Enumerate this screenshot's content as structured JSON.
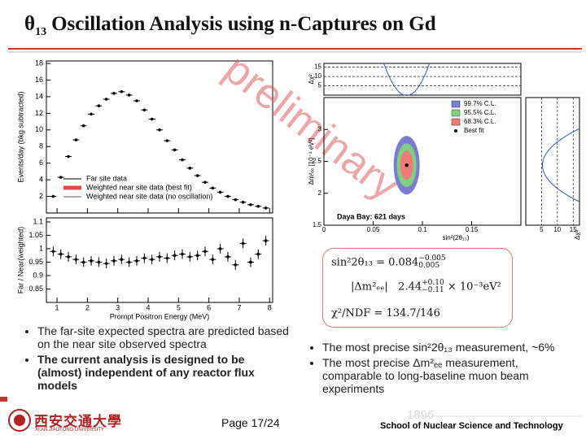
{
  "title": {
    "symbol": "θ",
    "subscript": "13",
    "text": "Oscillation Analysis using n-Captures on Gd"
  },
  "spectrum_plot": {
    "type": "scatter",
    "y_label": "Events/day (bkg subtracted)",
    "ratio_label": "Far / Near(weighted)",
    "x_label": "Prompt Positron Energy (MeV)",
    "xlim": [
      0.65,
      8.1
    ],
    "xticks": [
      1,
      2,
      3,
      4,
      5,
      6,
      7,
      8
    ],
    "ylim": [
      0,
      18.3
    ],
    "yticks": [
      2,
      4,
      6,
      8,
      10,
      12,
      14,
      16,
      18
    ],
    "ratio_ylim": [
      0.8,
      1.115
    ],
    "ratio_ticks": [
      0.85,
      0.9,
      0.95,
      1,
      1.05,
      1.1
    ],
    "legend": [
      "Far site data",
      "Weighted near site data (best fit)",
      "Weighted near site data (no oscillation)"
    ],
    "energies": [
      0.875,
      1.125,
      1.375,
      1.625,
      1.875,
      2.125,
      2.375,
      2.625,
      2.875,
      3.125,
      3.375,
      3.625,
      3.875,
      4.125,
      4.375,
      4.625,
      4.875,
      5.125,
      5.375,
      5.625,
      5.875,
      6.125,
      6.375,
      6.625,
      6.875,
      7.125,
      7.375,
      7.625,
      7.875
    ],
    "far_site": [
      2.0,
      4.3,
      6.8,
      8.8,
      10.5,
      11.9,
      12.9,
      13.7,
      14.4,
      14.6,
      14.2,
      13.5,
      12.4,
      11.3,
      10.0,
      8.7,
      7.6,
      6.4,
      5.4,
      4.5,
      3.7,
      3.0,
      2.5,
      2.0,
      1.6,
      1.3,
      1.0,
      0.8,
      0.6
    ],
    "ratio": [
      0.99,
      0.98,
      0.97,
      0.96,
      0.95,
      0.955,
      0.95,
      0.945,
      0.955,
      0.96,
      0.95,
      0.955,
      0.965,
      0.96,
      0.97,
      0.965,
      0.975,
      0.98,
      0.97,
      0.975,
      0.99,
      0.96,
      1.0,
      0.97,
      0.94,
      1.02,
      0.95,
      0.98,
      1.03
    ],
    "watermark": "preliminary"
  },
  "contour_plot": {
    "x_label": "sin²(2θ₁₃)",
    "y_label": "Δm²ₑₑ [10⁻³ eV²]",
    "xlim": [
      0,
      0.2
    ],
    "xticks": [
      0,
      0.05,
      0.1,
      0.15
    ],
    "ylim": [
      1.5,
      3.5
    ],
    "yticks": [
      1.5,
      2,
      2.5,
      3
    ],
    "chi2_label": "Δχ²",
    "chi2_lim": [
      0,
      17
    ],
    "chi2_ticks": [
      5,
      10,
      15
    ],
    "legend": [
      "99.7% C.L.",
      "95.5% C.L.",
      "68.3% C.L.",
      "Best fit"
    ],
    "legend_colors": [
      "#7b7bd0",
      "#7fd07f",
      "#f07a7a"
    ],
    "annotation": "Daya Bay: 621 days",
    "best_fit": {
      "x": 0.084,
      "y": 2.44
    }
  },
  "results": {
    "sin2": {
      "lhs": "sin²2θ₁₃ = 0.084",
      "upper": "−0.005",
      "lower": "0.005"
    },
    "dm2": {
      "lhs": "|Δm²ₑₑ|",
      "value": "2.44",
      "upper": "+0.10",
      "lower": "−0.11",
      "unit": "× 10⁻³eV²"
    },
    "chi2": "χ²/NDF = 134.7/146"
  },
  "bullets_left": [
    "The far-site expected spectra are predicted based on the near site observed spectra",
    "The current analysis is designed to be (almost) independent of any reactor flux models"
  ],
  "bullets_right": [
    "The most precise sin²2θ₁₃ measurement, ~6%",
    "The most precise Δm²ₑₑ measurement, comparable to long-baseline muon beam experiments"
  ],
  "footer": {
    "logo_cn": "西安交通大學",
    "logo_en": "XI'AN JIAOTONG UNIVERSITY",
    "page": "Page 17/24",
    "year": "1896",
    "school": "School of Nuclear Science and Technology"
  }
}
